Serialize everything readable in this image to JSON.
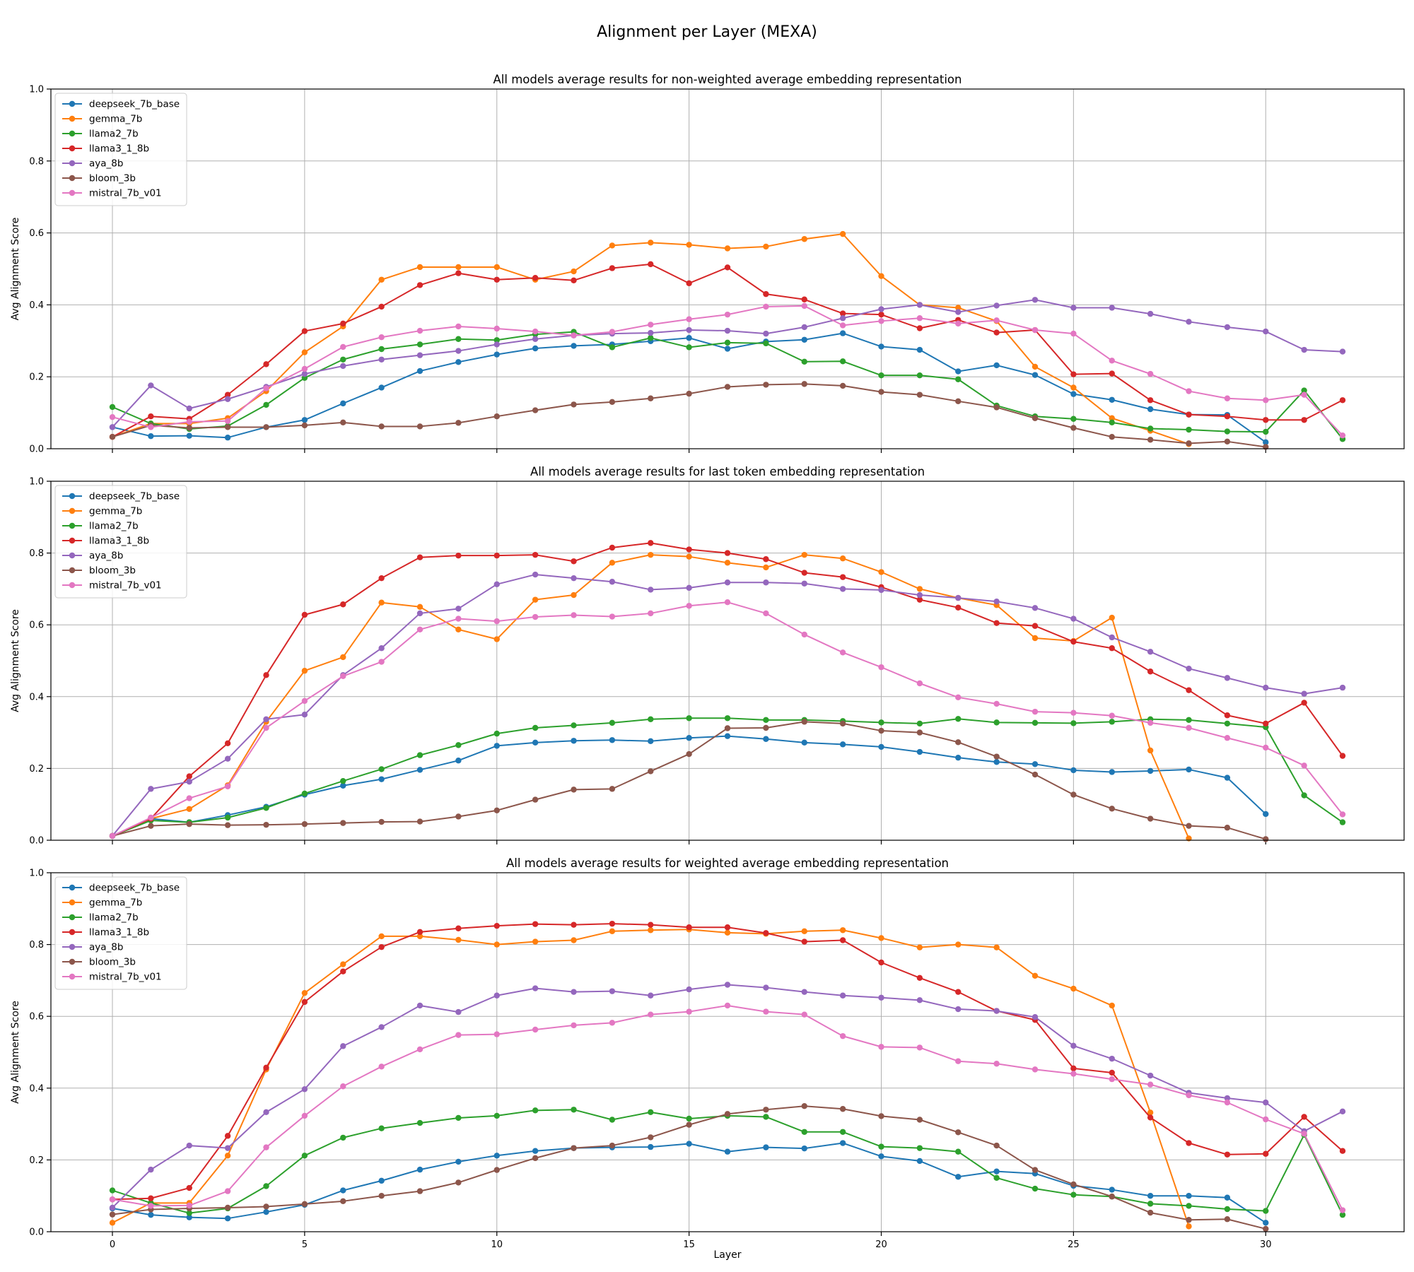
{
  "chart_data": {
    "type": "line",
    "suptitle": "Alignment per Layer (MEXA)",
    "xlabel": "Layer",
    "xlim": [
      -1.6,
      33.6
    ],
    "xticks": [
      0,
      5,
      10,
      15,
      20,
      25,
      30
    ],
    "grid": true,
    "legend_position": "upper left",
    "series_styles": [
      {
        "name": "deepseek_7b_base",
        "color": "#1f77b4"
      },
      {
        "name": "gemma_7b",
        "color": "#ff7f0e"
      },
      {
        "name": "llama2_7b",
        "color": "#2ca02c"
      },
      {
        "name": "llama3_1_8b",
        "color": "#d62728"
      },
      {
        "name": "aya_8b",
        "color": "#9467bd"
      },
      {
        "name": "bloom_3b",
        "color": "#8c564b"
      },
      {
        "name": "mistral_7b_v01",
        "color": "#e377c2"
      }
    ],
    "panels": [
      {
        "title": "All models average results for non-weighted average embedding representation",
        "ylabel": "Avg Alignment Score",
        "ylim": [
          0,
          1
        ],
        "yticks": [
          "0.0",
          "0.2",
          "0.4",
          "0.6",
          "0.8",
          "1.0"
        ],
        "series": [
          {
            "name": "deepseek_7b_base",
            "values": [
              0.06,
              0.035,
              0.036,
              0.031,
              0.06,
              0.08,
              0.126,
              0.17,
              0.216,
              0.241,
              0.262,
              0.279,
              0.286,
              0.29,
              0.299,
              0.308,
              0.278,
              0.298,
              0.303,
              0.321,
              0.284,
              0.275,
              0.215,
              0.232,
              0.205,
              0.152,
              0.136,
              0.11,
              0.095,
              0.094,
              0.018
            ]
          },
          {
            "name": "gemma_7b",
            "values": [
              0.033,
              0.07,
              0.07,
              0.085,
              0.16,
              0.268,
              0.34,
              0.47,
              0.505,
              0.505,
              0.505,
              0.47,
              0.493,
              0.565,
              0.573,
              0.567,
              0.557,
              0.562,
              0.583,
              0.597,
              0.48,
              0.4,
              0.392,
              0.355,
              0.228,
              0.17,
              0.085,
              0.05,
              0.013
            ]
          },
          {
            "name": "llama2_7b",
            "values": [
              0.116,
              0.07,
              0.055,
              0.063,
              0.122,
              0.197,
              0.248,
              0.277,
              0.29,
              0.305,
              0.302,
              0.318,
              0.325,
              0.282,
              0.308,
              0.282,
              0.295,
              0.293,
              0.242,
              0.243,
              0.204,
              0.204,
              0.193,
              0.12,
              0.09,
              0.083,
              0.073,
              0.056,
              0.053,
              0.048,
              0.047,
              0.162,
              0.027
            ]
          },
          {
            "name": "llama3_1_8b",
            "values": [
              0.033,
              0.09,
              0.083,
              0.15,
              0.235,
              0.327,
              0.348,
              0.395,
              0.455,
              0.488,
              0.47,
              0.475,
              0.468,
              0.502,
              0.513,
              0.46,
              0.504,
              0.43,
              0.415,
              0.376,
              0.373,
              0.335,
              0.358,
              0.323,
              0.33,
              0.207,
              0.209,
              0.135,
              0.095,
              0.09,
              0.08,
              0.08,
              0.135
            ]
          },
          {
            "name": "aya_8b",
            "values": [
              0.06,
              0.176,
              0.112,
              0.138,
              0.172,
              0.208,
              0.23,
              0.248,
              0.26,
              0.272,
              0.29,
              0.305,
              0.315,
              0.32,
              0.322,
              0.33,
              0.328,
              0.32,
              0.338,
              0.363,
              0.388,
              0.4,
              0.38,
              0.398,
              0.414,
              0.392,
              0.392,
              0.375,
              0.353,
              0.338,
              0.326,
              0.275,
              0.27
            ]
          },
          {
            "name": "bloom_3b",
            "values": [
              0.033,
              0.065,
              0.058,
              0.06,
              0.06,
              0.065,
              0.073,
              0.062,
              0.062,
              0.072,
              0.09,
              0.107,
              0.123,
              0.13,
              0.14,
              0.153,
              0.172,
              0.178,
              0.18,
              0.175,
              0.158,
              0.15,
              0.132,
              0.115,
              0.085,
              0.058,
              0.033,
              0.025,
              0.015,
              0.02,
              0.005
            ]
          },
          {
            "name": "mistral_7b_v01",
            "values": [
              0.088,
              0.06,
              0.075,
              0.077,
              0.168,
              0.222,
              0.283,
              0.31,
              0.328,
              0.34,
              0.334,
              0.326,
              0.315,
              0.325,
              0.345,
              0.36,
              0.373,
              0.395,
              0.397,
              0.343,
              0.355,
              0.363,
              0.348,
              0.357,
              0.33,
              0.32,
              0.245,
              0.208,
              0.16,
              0.14,
              0.135,
              0.15,
              0.037
            ]
          }
        ]
      },
      {
        "title": "All models average results for last token embedding representation",
        "ylabel": "Avg Alignment Score",
        "ylim": [
          0,
          1
        ],
        "yticks": [
          "0.0",
          "0.2",
          "0.4",
          "0.6",
          "0.8",
          "1.0"
        ],
        "series": [
          {
            "name": "deepseek_7b_base",
            "values": [
              0.012,
              0.06,
              0.05,
              0.07,
              0.093,
              0.127,
              0.152,
              0.17,
              0.196,
              0.222,
              0.263,
              0.272,
              0.277,
              0.279,
              0.276,
              0.285,
              0.29,
              0.282,
              0.272,
              0.267,
              0.26,
              0.246,
              0.23,
              0.218,
              0.212,
              0.195,
              0.19,
              0.193,
              0.197,
              0.174,
              0.073
            ]
          },
          {
            "name": "gemma_7b",
            "values": [
              0.012,
              0.06,
              0.087,
              0.153,
              0.33,
              0.472,
              0.51,
              0.662,
              0.65,
              0.587,
              0.56,
              0.67,
              0.683,
              0.773,
              0.795,
              0.79,
              0.773,
              0.76,
              0.795,
              0.785,
              0.747,
              0.7,
              0.675,
              0.655,
              0.563,
              0.555,
              0.62,
              0.25,
              0.005
            ]
          },
          {
            "name": "llama2_7b",
            "values": [
              0.012,
              0.055,
              0.05,
              0.063,
              0.09,
              0.13,
              0.165,
              0.198,
              0.237,
              0.265,
              0.297,
              0.313,
              0.32,
              0.327,
              0.337,
              0.34,
              0.34,
              0.335,
              0.335,
              0.332,
              0.328,
              0.325,
              0.338,
              0.328,
              0.327,
              0.326,
              0.33,
              0.337,
              0.335,
              0.325,
              0.315,
              0.125,
              0.05
            ]
          },
          {
            "name": "llama3_1_8b",
            "values": [
              0.012,
              0.06,
              0.178,
              0.27,
              0.46,
              0.628,
              0.657,
              0.73,
              0.788,
              0.793,
              0.793,
              0.795,
              0.777,
              0.815,
              0.828,
              0.81,
              0.8,
              0.783,
              0.745,
              0.733,
              0.705,
              0.67,
              0.648,
              0.605,
              0.597,
              0.553,
              0.535,
              0.47,
              0.418,
              0.348,
              0.325,
              0.383,
              0.235
            ]
          },
          {
            "name": "aya_8b",
            "values": [
              0.012,
              0.143,
              0.163,
              0.227,
              0.337,
              0.35,
              0.46,
              0.535,
              0.632,
              0.645,
              0.713,
              0.74,
              0.73,
              0.72,
              0.698,
              0.703,
              0.718,
              0.718,
              0.715,
              0.7,
              0.697,
              0.683,
              0.675,
              0.665,
              0.647,
              0.617,
              0.565,
              0.525,
              0.478,
              0.452,
              0.425,
              0.408,
              0.425
            ]
          },
          {
            "name": "bloom_3b",
            "values": [
              0.012,
              0.04,
              0.045,
              0.042,
              0.043,
              0.045,
              0.048,
              0.051,
              0.052,
              0.066,
              0.083,
              0.113,
              0.141,
              0.143,
              0.192,
              0.24,
              0.312,
              0.313,
              0.33,
              0.325,
              0.305,
              0.3,
              0.273,
              0.233,
              0.183,
              0.127,
              0.088,
              0.06,
              0.04,
              0.035,
              0.003
            ]
          },
          {
            "name": "mistral_7b_v01",
            "values": [
              0.012,
              0.063,
              0.117,
              0.15,
              0.313,
              0.388,
              0.457,
              0.497,
              0.587,
              0.617,
              0.61,
              0.622,
              0.627,
              0.623,
              0.632,
              0.653,
              0.663,
              0.632,
              0.573,
              0.523,
              0.482,
              0.437,
              0.398,
              0.38,
              0.358,
              0.355,
              0.347,
              0.327,
              0.313,
              0.285,
              0.258,
              0.208,
              0.072
            ]
          }
        ]
      },
      {
        "title": "All models average results for weighted average embedding representation",
        "ylabel": "Avg Alignment Score",
        "ylim": [
          0,
          1
        ],
        "yticks": [
          "0.0",
          "0.2",
          "0.4",
          "0.6",
          "0.8",
          "1.0"
        ],
        "series": [
          {
            "name": "deepseek_7b_base",
            "values": [
              0.065,
              0.047,
              0.04,
              0.037,
              0.055,
              0.075,
              0.115,
              0.142,
              0.173,
              0.195,
              0.212,
              0.225,
              0.233,
              0.235,
              0.236,
              0.245,
              0.223,
              0.235,
              0.232,
              0.247,
              0.21,
              0.197,
              0.153,
              0.168,
              0.162,
              0.128,
              0.117,
              0.1,
              0.1,
              0.095,
              0.025
            ]
          },
          {
            "name": "gemma_7b",
            "values": [
              0.025,
              0.08,
              0.08,
              0.212,
              0.452,
              0.665,
              0.745,
              0.823,
              0.823,
              0.813,
              0.8,
              0.808,
              0.812,
              0.837,
              0.84,
              0.842,
              0.833,
              0.83,
              0.837,
              0.84,
              0.818,
              0.792,
              0.8,
              0.792,
              0.713,
              0.677,
              0.63,
              0.332,
              0.015
            ]
          },
          {
            "name": "llama2_7b",
            "values": [
              0.115,
              0.08,
              0.052,
              0.065,
              0.127,
              0.212,
              0.262,
              0.288,
              0.303,
              0.317,
              0.323,
              0.338,
              0.34,
              0.312,
              0.333,
              0.315,
              0.323,
              0.32,
              0.278,
              0.278,
              0.237,
              0.233,
              0.223,
              0.15,
              0.12,
              0.103,
              0.098,
              0.078,
              0.072,
              0.063,
              0.058,
              0.27,
              0.047
            ]
          },
          {
            "name": "llama3_1_8b",
            "values": [
              0.09,
              0.093,
              0.122,
              0.267,
              0.457,
              0.64,
              0.725,
              0.793,
              0.835,
              0.845,
              0.852,
              0.857,
              0.855,
              0.858,
              0.855,
              0.848,
              0.848,
              0.832,
              0.808,
              0.812,
              0.75,
              0.707,
              0.668,
              0.615,
              0.59,
              0.455,
              0.443,
              0.318,
              0.247,
              0.215,
              0.217,
              0.32,
              0.225
            ]
          },
          {
            "name": "aya_8b",
            "values": [
              0.067,
              0.173,
              0.24,
              0.233,
              0.333,
              0.397,
              0.517,
              0.57,
              0.63,
              0.612,
              0.658,
              0.678,
              0.668,
              0.67,
              0.658,
              0.675,
              0.688,
              0.68,
              0.668,
              0.658,
              0.652,
              0.645,
              0.62,
              0.615,
              0.598,
              0.518,
              0.482,
              0.435,
              0.387,
              0.372,
              0.36,
              0.28,
              0.335
            ]
          },
          {
            "name": "bloom_3b",
            "values": [
              0.048,
              0.062,
              0.065,
              0.067,
              0.07,
              0.077,
              0.085,
              0.1,
              0.113,
              0.137,
              0.172,
              0.205,
              0.233,
              0.24,
              0.263,
              0.298,
              0.328,
              0.34,
              0.35,
              0.342,
              0.322,
              0.312,
              0.277,
              0.24,
              0.172,
              0.132,
              0.098,
              0.053,
              0.033,
              0.035,
              0.008
            ]
          },
          {
            "name": "mistral_7b_v01",
            "values": [
              0.09,
              0.072,
              0.073,
              0.113,
              0.235,
              0.323,
              0.405,
              0.46,
              0.508,
              0.548,
              0.55,
              0.563,
              0.575,
              0.582,
              0.605,
              0.613,
              0.63,
              0.613,
              0.605,
              0.545,
              0.515,
              0.513,
              0.475,
              0.468,
              0.452,
              0.44,
              0.425,
              0.41,
              0.38,
              0.36,
              0.313,
              0.273,
              0.06
            ]
          }
        ]
      }
    ]
  }
}
